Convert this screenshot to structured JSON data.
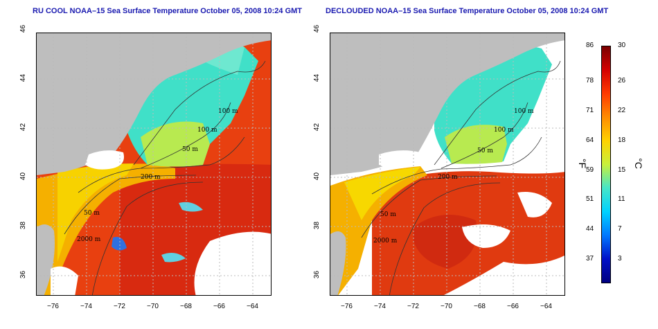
{
  "panels": [
    {
      "title": "RU COOL NOAA–15 Sea Surface Temperature October 05, 2008 10:24 GMT",
      "variant": "cool"
    },
    {
      "title": "DECLOUDED NOAA–15 Sea Surface Temperature October 05, 2008 10:24 GMT",
      "variant": "declouded"
    }
  ],
  "x_ticks": [
    "−76",
    "−74",
    "−72",
    "−70",
    "−68",
    "−66",
    "−64"
  ],
  "y_ticks": [
    "36",
    "38",
    "40",
    "42",
    "44",
    "46"
  ],
  "contours": [
    "100 m",
    "100 m",
    "50 m",
    "200 m",
    "50 m",
    "2000 m"
  ],
  "contours_right": [
    "100 m",
    "100 m",
    "50 m",
    "200 m",
    "50 m",
    "2000 m"
  ],
  "colorbar": {
    "fahrenheit": [
      "86",
      "78",
      "71",
      "64",
      "59",
      "51",
      "44",
      "37"
    ],
    "celsius": [
      "30",
      "26",
      "22",
      "18",
      "15",
      "11",
      "7",
      "3"
    ],
    "unit_f": "°F",
    "unit_c": "°C",
    "colors": [
      "#7a0000",
      "#d40000",
      "#ff3a00",
      "#ff8c00",
      "#ffd200",
      "#c8f03c",
      "#46e6c8",
      "#00d2ff",
      "#0078ff",
      "#0010c8",
      "#000080"
    ]
  },
  "colors": {
    "land": "#bebebe",
    "cloud": "#ffffff",
    "gulf_stream": "#e83a10",
    "warm": "#ff5a10",
    "shelf_yellow": "#f0d000",
    "gulf_of_maine": "#40e0d0"
  }
}
